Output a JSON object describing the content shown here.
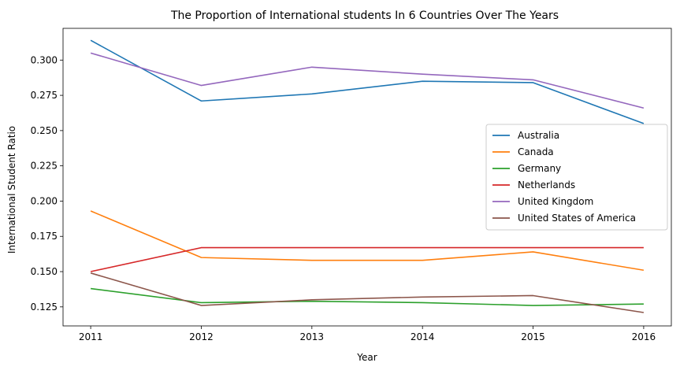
{
  "chart_data": {
    "type": "line",
    "title": "The Proportion of International students In 6 Countries Over The Years",
    "xlabel": "Year",
    "ylabel": "International Student Ratio",
    "x": [
      "2011",
      "2012",
      "2013",
      "2014",
      "2015",
      "2016"
    ],
    "xlim": [
      2010.75,
      2016.25
    ],
    "ylim": [
      0.1115,
      0.3225
    ],
    "yticks": [
      "0.125",
      "0.150",
      "0.175",
      "0.200",
      "0.225",
      "0.250",
      "0.275",
      "0.300"
    ],
    "grid": false,
    "legend_position": "center-right",
    "series": [
      {
        "name": "Australia",
        "color": "#1f77b4",
        "values": [
          0.314,
          0.271,
          0.276,
          0.285,
          0.284,
          0.255
        ]
      },
      {
        "name": "Canada",
        "color": "#ff7f0e",
        "values": [
          0.193,
          0.16,
          0.158,
          0.158,
          0.164,
          0.151
        ]
      },
      {
        "name": "Germany",
        "color": "#2ca02c",
        "values": [
          0.138,
          0.128,
          0.129,
          0.128,
          0.126,
          0.127
        ]
      },
      {
        "name": "Netherlands",
        "color": "#d62728",
        "values": [
          0.15,
          0.167,
          0.167,
          0.167,
          0.167,
          0.167
        ]
      },
      {
        "name": "United Kingdom",
        "color": "#9467bd",
        "values": [
          0.305,
          0.282,
          0.295,
          0.29,
          0.286,
          0.266
        ]
      },
      {
        "name": "United States of America",
        "color": "#8c564b",
        "values": [
          0.149,
          0.126,
          0.13,
          0.132,
          0.133,
          0.121
        ]
      }
    ]
  }
}
